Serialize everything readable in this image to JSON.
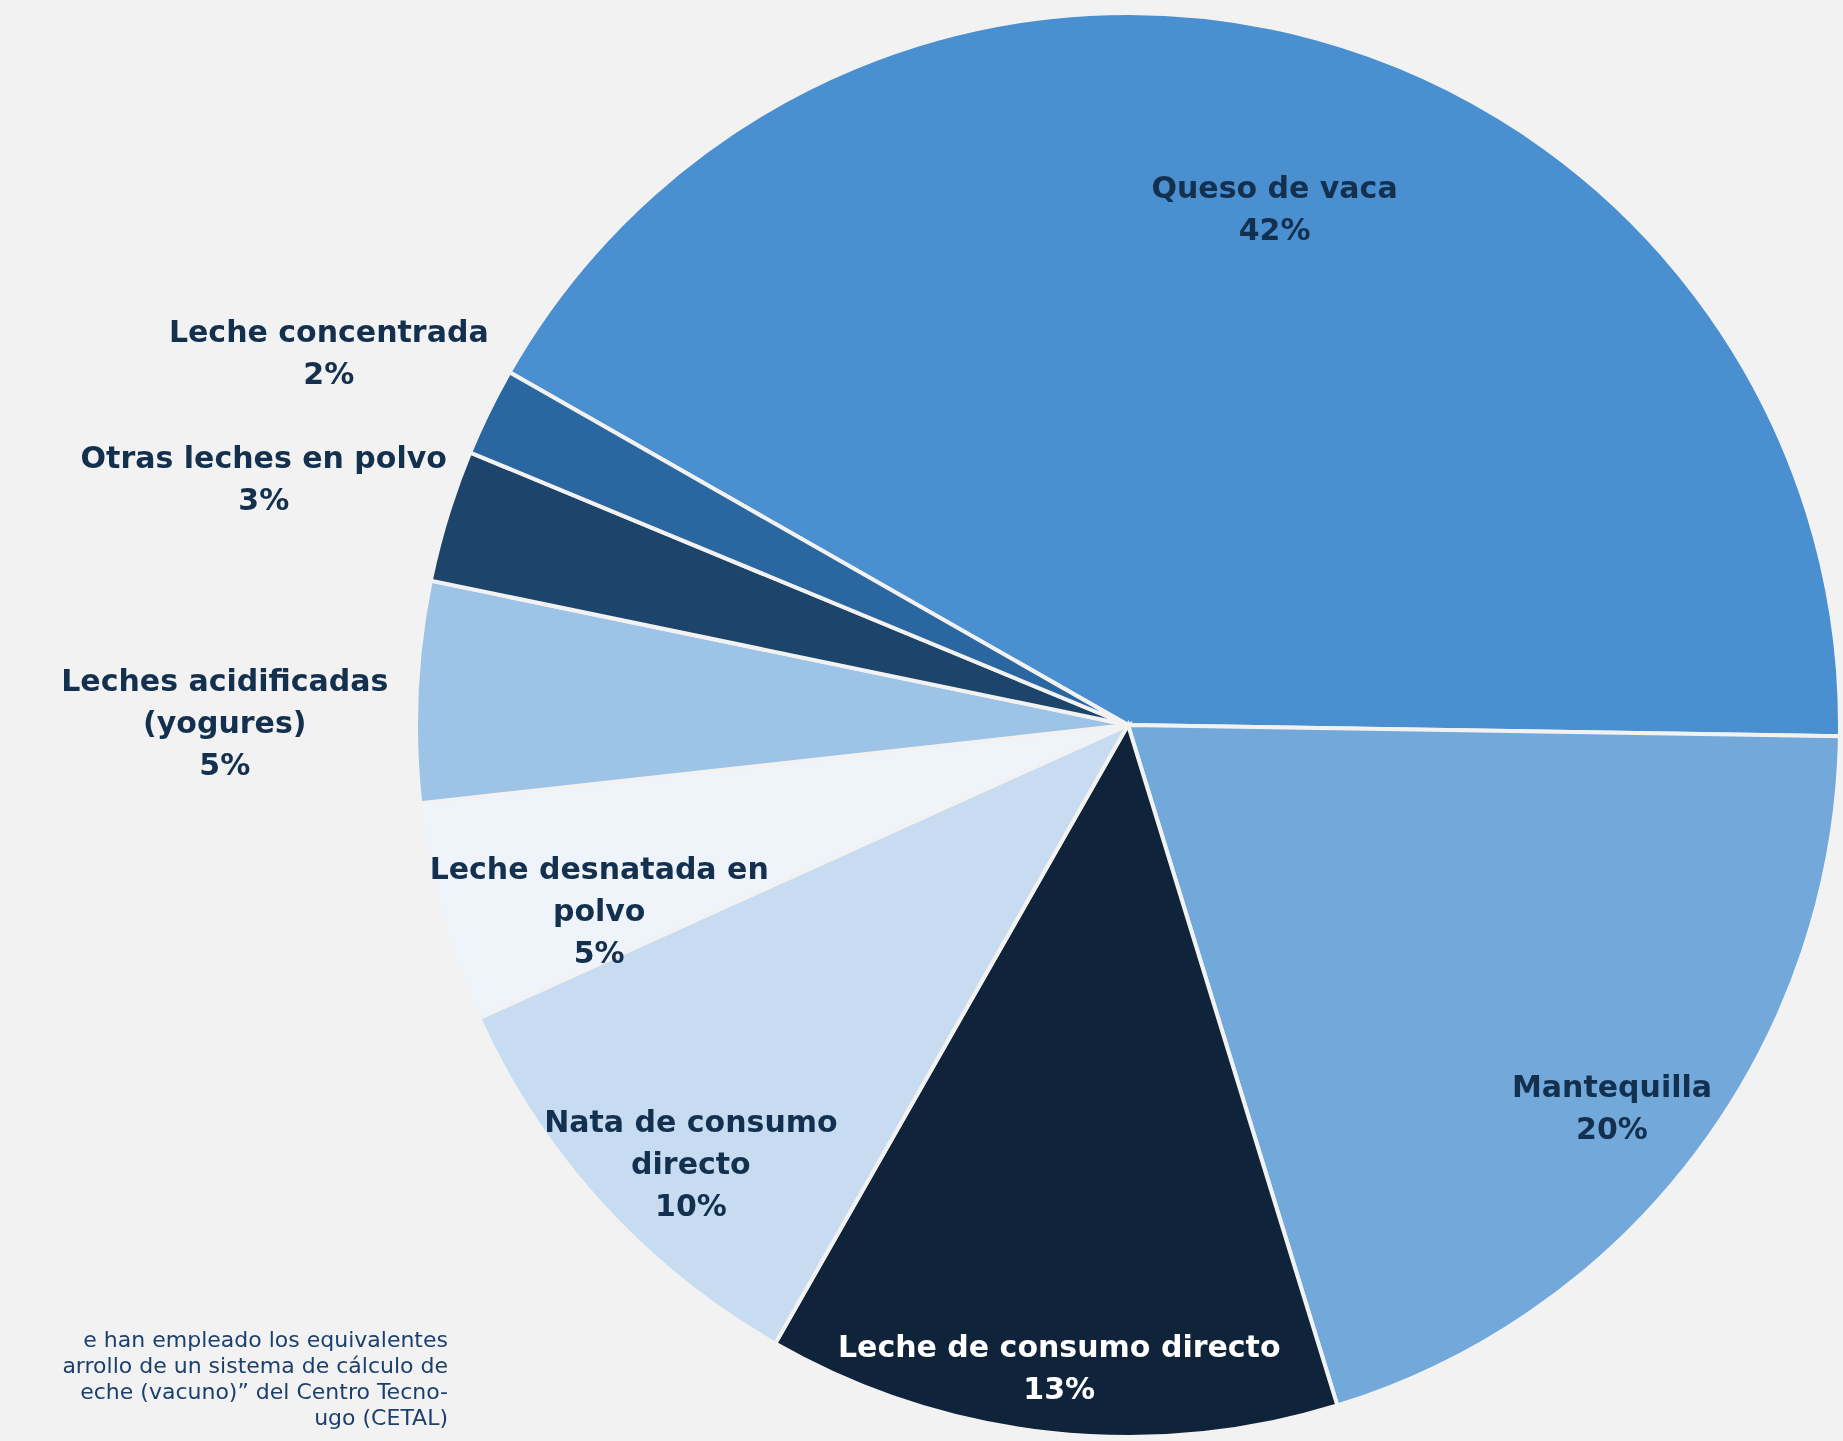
{
  "chart_data": {
    "type": "pie",
    "categories": [
      "Queso de vaca",
      "Mantequilla",
      "Leche de consumo directo",
      "Nata de consumo directo",
      "Leche desnatada en polvo",
      "Leches acidificadas (yogures)",
      "Otras leches en polvo",
      "Leche concentrada"
    ],
    "values": [
      42,
      20,
      13,
      10,
      5,
      5,
      3,
      2
    ],
    "colors": [
      "#4a8fd0",
      "#72a8da",
      "#0f233a",
      "#c7dcf0",
      "#eef4fa",
      "#9dc3e6",
      "#1d456b",
      "#2a66a0"
    ],
    "value_labels": [
      "42%",
      "20%",
      "13%",
      "10%",
      "5%",
      "5%",
      "3%",
      "2%"
    ],
    "annotations": [
      "e han empleado los equivalentes",
      "arrollo de un sistema de cálculo de",
      "eche (vacuno)” del  Centro Tecno-",
      "ugo (CETAL)"
    ]
  }
}
